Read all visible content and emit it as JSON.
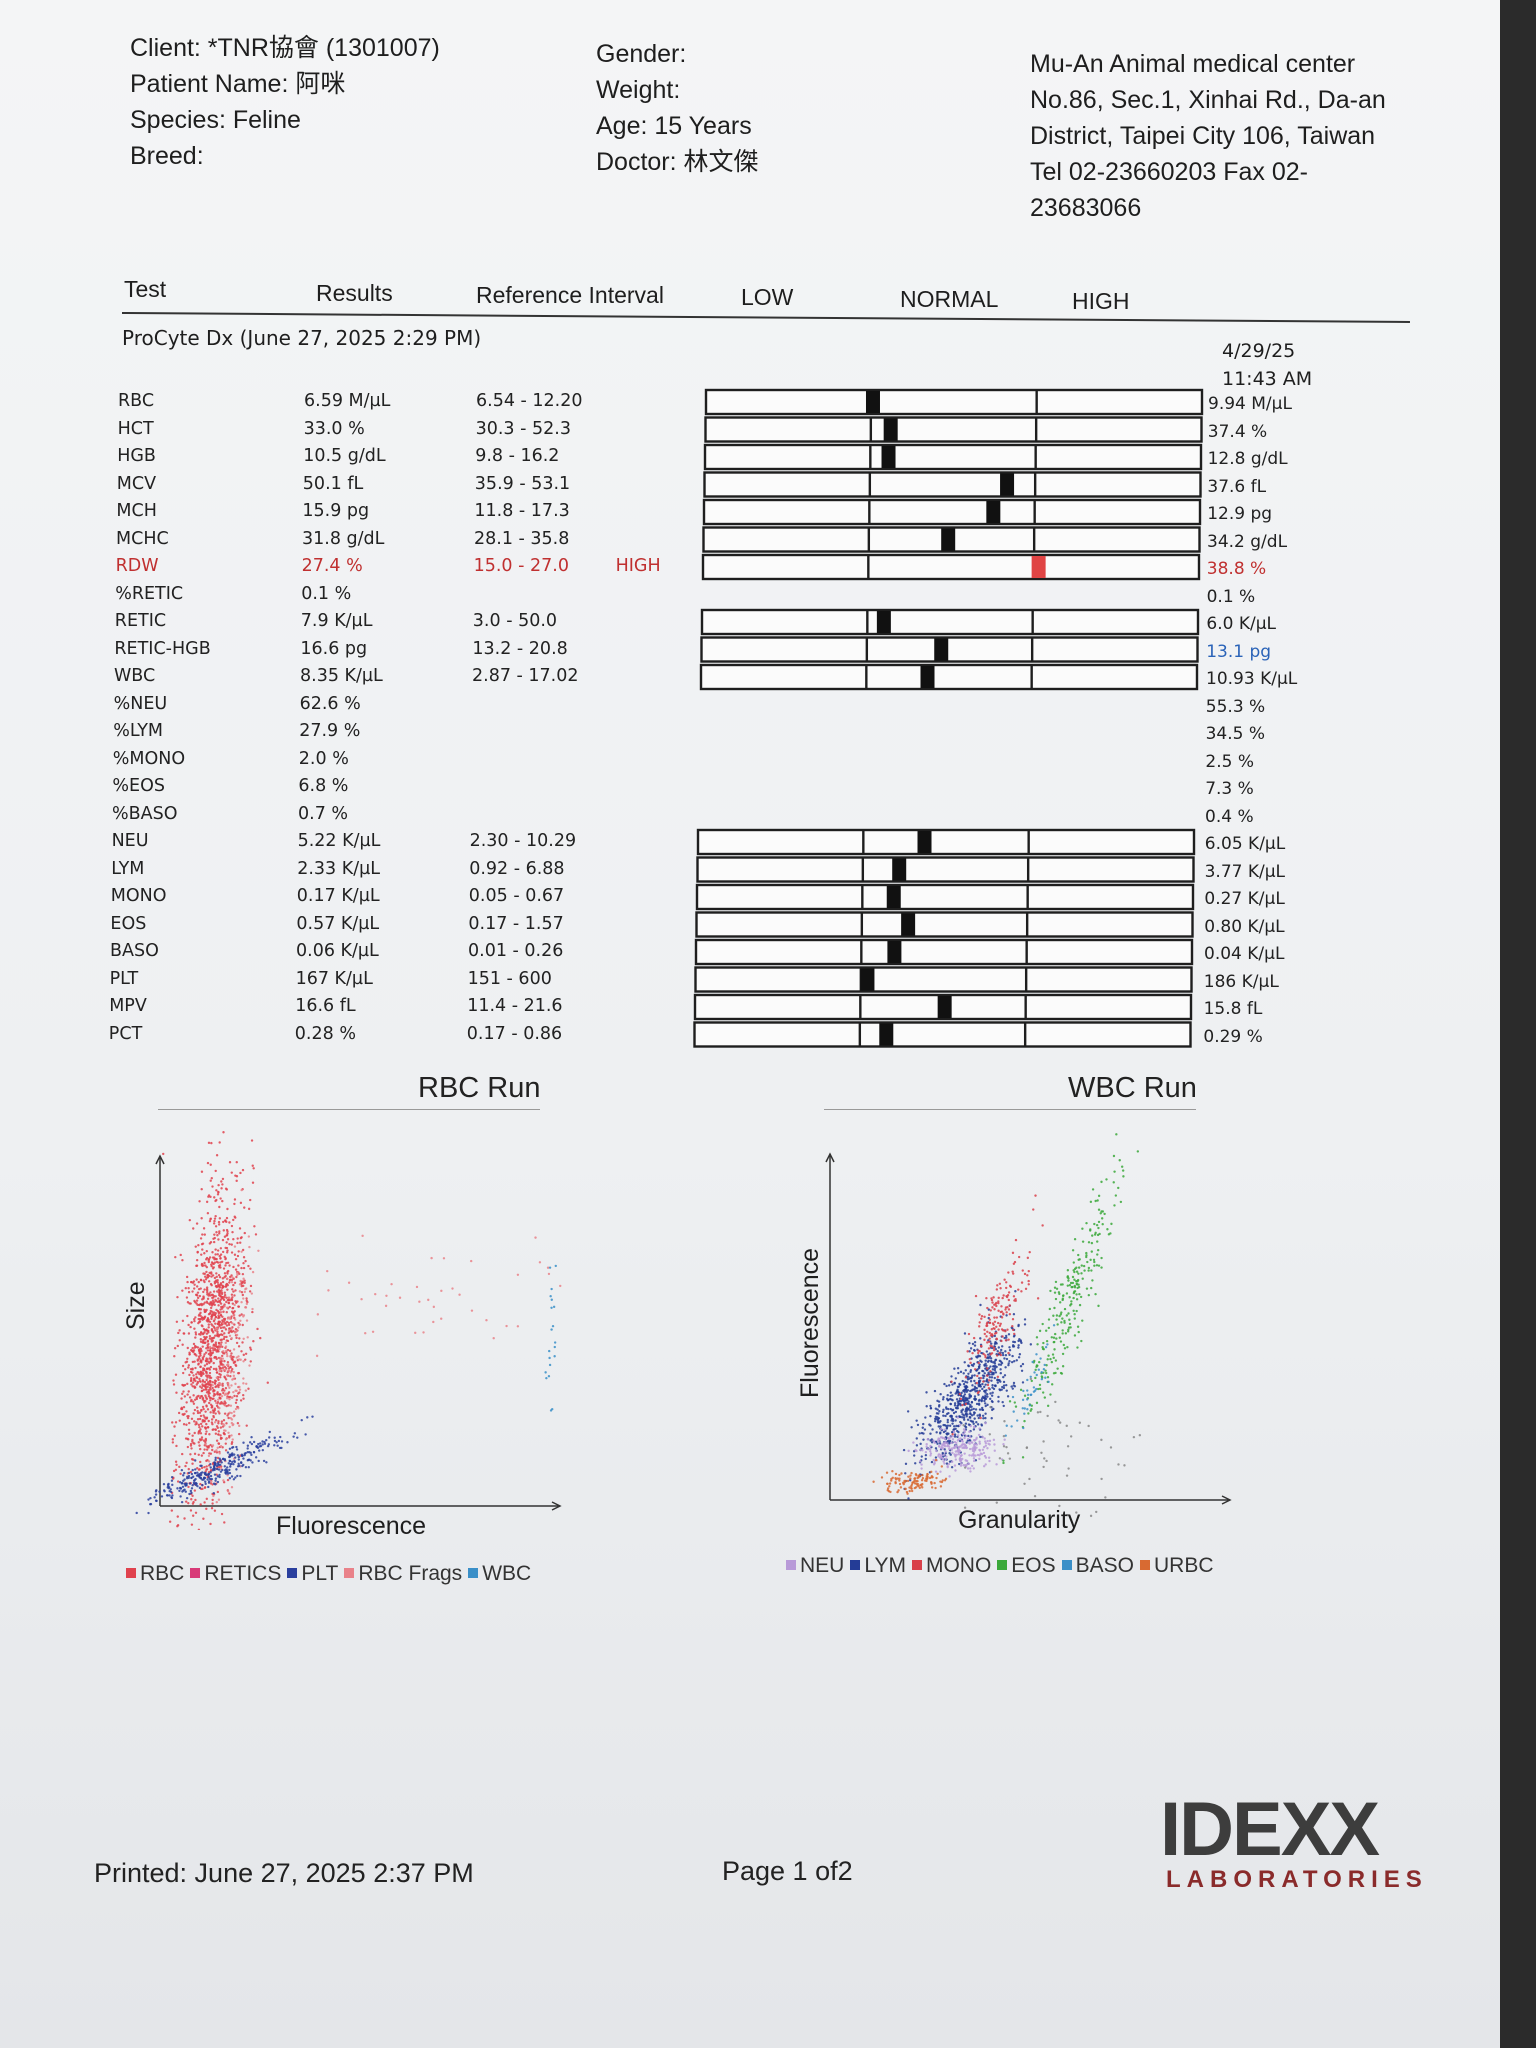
{
  "header": {
    "client": "Client: *TNR協會 (1301007)",
    "patient": "Patient Name: 阿咪",
    "species": "Species: Feline",
    "breed": "Breed:",
    "gender": "Gender:",
    "weight": "Weight:",
    "age": "Age: 15 Years",
    "doctor": "Doctor: 林文傑",
    "clinic": [
      "Mu-An Animal medical center",
      "No.86, Sec.1, Xinhai Rd., Da-an",
      "District, Taipei City 106, Taiwan",
      "Tel 02-23660203  Fax 02-",
      "23683066"
    ]
  },
  "columns": {
    "test": "Test",
    "results": "Results",
    "ref": "Reference Interval",
    "low": "LOW",
    "normal": "NORMAL",
    "high": "HIGH"
  },
  "run": {
    "title": "ProCyte Dx (June 27, 2025 2:29 PM)",
    "prev_date": "4/29/25",
    "prev_time": "11:43 AM"
  },
  "colors": {
    "high": "#c03030",
    "prev_low": "#2a63b8",
    "ink": "#1e1e1e"
  },
  "rows": [
    {
      "test": "RBC",
      "result": "6.59 M/µL",
      "ref": "6.54 - 12.20",
      "flag": "",
      "prev": "9.94 M/µL",
      "bar": 0.01
    },
    {
      "test": "HCT",
      "result": "33.0 %",
      "ref": "30.3 - 52.3",
      "flag": "",
      "prev": "37.4 %",
      "bar": 0.12
    },
    {
      "test": "HGB",
      "result": "10.5 g/dL",
      "ref": "9.8 - 16.2",
      "flag": "",
      "prev": "12.8 g/dL",
      "bar": 0.11
    },
    {
      "test": "MCV",
      "result": "50.1 fL",
      "ref": "35.9 - 53.1",
      "flag": "",
      "prev": "37.6 fL",
      "bar": 0.83
    },
    {
      "test": "MCH",
      "result": "15.9 pg",
      "ref": "11.8 - 17.3",
      "flag": "",
      "prev": "12.9 pg",
      "bar": 0.75
    },
    {
      "test": "MCHC",
      "result": "31.8 g/dL",
      "ref": "28.1 - 35.8",
      "flag": "",
      "prev": "34.2 g/dL",
      "bar": 0.48
    },
    {
      "test": "RDW",
      "result": "27.4 %",
      "ref": "15.0 - 27.0",
      "flag": "HIGH",
      "prev": "38.8 %",
      "bar": 1.03
    },
    {
      "test": "%RETIC",
      "result": "0.1 %",
      "ref": "",
      "flag": "",
      "prev": "0.1 %"
    },
    {
      "test": "RETIC",
      "result": "7.9 K/µL",
      "ref": "3.0 - 50.0",
      "flag": "",
      "prev": "6.0 K/µL",
      "bar": 0.1
    },
    {
      "test": "RETIC-HGB",
      "result": "16.6 pg",
      "ref": "13.2 - 20.8",
      "flag": "",
      "prev": "13.1 pg",
      "bar": 0.45,
      "prev_low": true
    },
    {
      "test": "WBC",
      "result": "8.35 K/µL",
      "ref": "2.87 - 17.02",
      "flag": "",
      "prev": "10.93 K/µL",
      "bar": 0.37
    },
    {
      "test": "%NEU",
      "result": "62.6 %",
      "ref": "",
      "flag": "",
      "prev": "55.3 %"
    },
    {
      "test": "%LYM",
      "result": "27.9 %",
      "ref": "",
      "flag": "",
      "prev": "34.5 %"
    },
    {
      "test": "%MONO",
      "result": "2.0 %",
      "ref": "",
      "flag": "",
      "prev": "2.5 %"
    },
    {
      "test": "%EOS",
      "result": "6.8 %",
      "ref": "",
      "flag": "",
      "prev": "7.3 %"
    },
    {
      "test": "%BASO",
      "result": "0.7 %",
      "ref": "",
      "flag": "",
      "prev": "0.4 %"
    },
    {
      "test": "NEU",
      "result": "5.22 K/µL",
      "ref": "2.30 - 10.29",
      "flag": "",
      "prev": "6.05 K/µL",
      "bar": 0.37
    },
    {
      "test": "LYM",
      "result": "2.33 K/µL",
      "ref": "0.92 - 6.88",
      "flag": "",
      "prev": "3.77 K/µL",
      "bar": 0.22
    },
    {
      "test": "MONO",
      "result": "0.17 K/µL",
      "ref": "0.05 - 0.67",
      "flag": "",
      "prev": "0.27 K/µL",
      "bar": 0.19
    },
    {
      "test": "EOS",
      "result": "0.57 K/µL",
      "ref": "0.17 - 1.57",
      "flag": "",
      "prev": "0.80 K/µL",
      "bar": 0.28
    },
    {
      "test": "BASO",
      "result": "0.06 K/µL",
      "ref": "0.01 - 0.26",
      "flag": "",
      "prev": "0.04 K/µL",
      "bar": 0.2
    },
    {
      "test": "PLT",
      "result": "167 K/µL",
      "ref": "151 - 600",
      "flag": "",
      "prev": "186 K/µL",
      "bar": 0.04
    },
    {
      "test": "MPV",
      "result": "16.6 fL",
      "ref": "11.4 - 21.6",
      "flag": "",
      "prev": "15.8 fL",
      "bar": 0.51
    },
    {
      "test": "PCT",
      "result": "0.28 %",
      "ref": "0.17 - 0.86",
      "flag": "",
      "prev": "0.29 %",
      "bar": 0.16
    }
  ],
  "rbc_chart": {
    "title": "RBC Run",
    "xlabel": "Fluorescence",
    "ylabel": "Size",
    "legend": [
      {
        "label": "RBC",
        "color": "#e0424e"
      },
      {
        "label": "RETICS",
        "color": "#d83a78"
      },
      {
        "label": "PLT",
        "color": "#2a3f9e"
      },
      {
        "label": "RBC Frags",
        "color": "#e9828a"
      },
      {
        "label": "WBC",
        "color": "#3a8fc8"
      }
    ]
  },
  "wbc_chart": {
    "title": "WBC Run",
    "xlabel": "Granularity",
    "ylabel": "Fluorescence",
    "legend": [
      {
        "label": "NEU",
        "color": "#b89ad8"
      },
      {
        "label": "LYM",
        "color": "#243c96"
      },
      {
        "label": "MONO",
        "color": "#d9404a"
      },
      {
        "label": "EOS",
        "color": "#3aa83a"
      },
      {
        "label": "BASO",
        "color": "#3a8fc8"
      },
      {
        "label": "URBC",
        "color": "#d86a32"
      }
    ]
  },
  "footer": {
    "printed": "Printed: June 27, 2025 2:37 PM",
    "page": "Page 1 of2",
    "logo": "IDEXX",
    "logo_sub": "LABORATORIES"
  }
}
